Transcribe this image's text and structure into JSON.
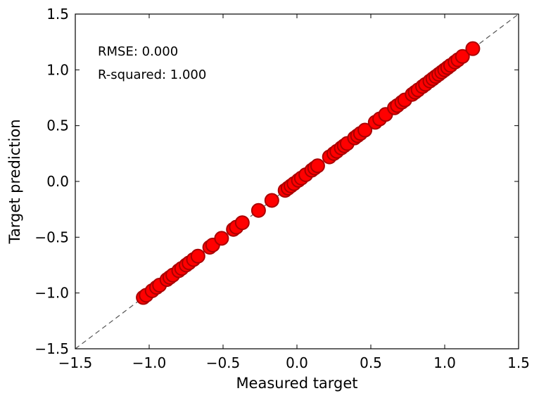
{
  "chart_data": {
    "type": "scatter",
    "title": "",
    "xlabel": "Measured target",
    "ylabel": "Target prediction",
    "xlim": [
      -1.5,
      1.5
    ],
    "ylim": [
      -1.5,
      1.5
    ],
    "xticks": [
      -1.5,
      -1.0,
      -0.5,
      0.0,
      0.5,
      1.0,
      1.5
    ],
    "yticks": [
      -1.5,
      -1.0,
      -0.5,
      0.0,
      0.5,
      1.0,
      1.5
    ],
    "tick_labels_x": [
      "−1.5",
      "−1.0",
      "−0.5",
      "0.0",
      "0.5",
      "1.0",
      "1.5"
    ],
    "tick_labels_y": [
      "−1.5",
      "−1.0",
      "−0.5",
      "0.0",
      "0.5",
      "1.0",
      "1.5"
    ],
    "grid": false,
    "reference_line": {
      "slope": 1,
      "intercept": 0,
      "style": "dashed",
      "color": "#555555"
    },
    "marker_color": "#ff0000",
    "marker_edge_color": "#aa0000",
    "annotations": [
      "RMSE: 0.000",
      "R-squared: 1.000"
    ],
    "series": [
      {
        "x": [
          -1.04,
          -1.02,
          -0.98,
          -0.95,
          -0.93,
          -0.88,
          -0.86,
          -0.84,
          -0.8,
          -0.78,
          -0.75,
          -0.73,
          -0.7,
          -0.67,
          -0.59,
          -0.57,
          -0.51,
          -0.43,
          -0.41,
          -0.37,
          -0.26,
          -0.17,
          -0.08,
          -0.06,
          -0.04,
          -0.02,
          0.01,
          0.03,
          0.06,
          0.1,
          0.12,
          0.14,
          0.22,
          0.25,
          0.27,
          0.3,
          0.32,
          0.34,
          0.39,
          0.41,
          0.43,
          0.46,
          0.53,
          0.56,
          0.6,
          0.66,
          0.68,
          0.71,
          0.73,
          0.78,
          0.8,
          0.82,
          0.85,
          0.87,
          0.9,
          0.92,
          0.94,
          0.96,
          0.98,
          1.0,
          1.02,
          1.04,
          1.07,
          1.09,
          1.12,
          1.19
        ],
        "y": [
          -1.04,
          -1.02,
          -0.98,
          -0.95,
          -0.93,
          -0.88,
          -0.86,
          -0.84,
          -0.8,
          -0.78,
          -0.75,
          -0.73,
          -0.7,
          -0.67,
          -0.59,
          -0.57,
          -0.51,
          -0.43,
          -0.41,
          -0.37,
          -0.26,
          -0.17,
          -0.08,
          -0.06,
          -0.04,
          -0.02,
          0.01,
          0.03,
          0.06,
          0.1,
          0.12,
          0.14,
          0.22,
          0.25,
          0.27,
          0.3,
          0.32,
          0.34,
          0.39,
          0.41,
          0.43,
          0.46,
          0.53,
          0.56,
          0.6,
          0.66,
          0.68,
          0.71,
          0.73,
          0.78,
          0.8,
          0.82,
          0.85,
          0.87,
          0.9,
          0.92,
          0.94,
          0.96,
          0.98,
          1.0,
          1.02,
          1.04,
          1.07,
          1.09,
          1.12,
          1.19
        ]
      }
    ]
  }
}
